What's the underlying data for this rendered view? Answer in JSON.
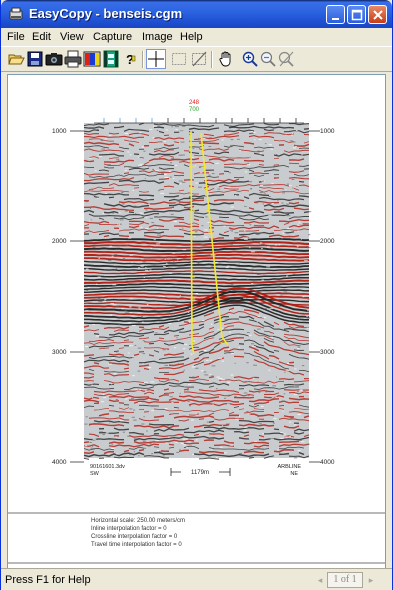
{
  "window": {
    "title": "EasyCopy - benseis.cgm",
    "colors": {
      "titlebar": "#2a62e0",
      "close_button": "#c83c14",
      "background": "#ece9d8"
    }
  },
  "menu": {
    "items": [
      "File",
      "Edit",
      "View",
      "Capture",
      "Image",
      "Help"
    ]
  },
  "toolbar": {
    "tools": [
      "open-icon",
      "save-icon",
      "capture-icon",
      "print-icon",
      "color-palette-icon",
      "film-icon",
      "help-icon",
      "crosshair-icon",
      "select-rectangle-icon",
      "crop-icon",
      "hand-pan-icon",
      "zoom-in-icon",
      "zoom-out-icon",
      "zoom-reset-icon"
    ]
  },
  "seismic": {
    "trace_top_red": "248",
    "trace_top_green": "700",
    "y_axis_left": [
      "1000",
      "2000",
      "3000",
      "4000"
    ],
    "y_axis_right": [
      "1000",
      "2000",
      "3000",
      "4000"
    ],
    "bottom_left_line1": "90161601.3dv",
    "bottom_left_line2": "SW",
    "bottom_right_line1": "ARBLINE",
    "bottom_right_line2": "NE",
    "scale_bar_label": "1179m",
    "colors": {
      "trace_red": "#b01a10",
      "trace_dark": "#222222",
      "well_path": "#f2e830",
      "top_red_label": "#e02020",
      "top_green_label": "#2aa02a"
    }
  },
  "info": {
    "horizontal_scale": "Horizontal scale:   250.00 meters/cm",
    "inline_interp": "Inline interpolation factor =   0",
    "crossline_interp": "Crossline interpolation factor =   0",
    "traveltime_interp": "Travel time interpolation factor =   0"
  },
  "status": {
    "help_text": "Press F1 for Help",
    "page_indicator": "1 of 1"
  }
}
